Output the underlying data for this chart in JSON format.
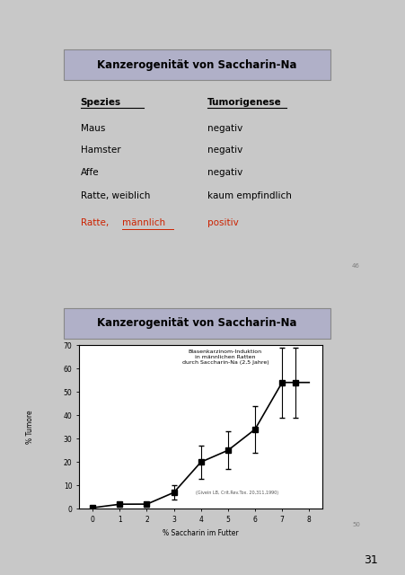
{
  "page_bg": "#c8c8c8",
  "slide_bg": "#f5f5dc",
  "title_bg": "#a0a0b8",
  "page_number": "31",
  "panel1": {
    "title": "Kanzerogenität von Saccharin-Na",
    "species_header": "Spezies",
    "tumor_header": "Tumorigenese",
    "rows": [
      {
        "species": "Maus",
        "tumor": "negativ",
        "red": false
      },
      {
        "species": "Hamster",
        "tumor": "negativ",
        "red": false
      },
      {
        "species": "Affe",
        "tumor": "negativ",
        "red": false
      },
      {
        "species": "Ratte, weiblich",
        "tumor": "kaum empfindlich",
        "red": false
      },
      {
        "species": "Ratte, männlich",
        "tumor": "positiv",
        "red": true
      }
    ],
    "slide_number": "46"
  },
  "panel2": {
    "title": "Kanzerogenität von Saccharin-Na",
    "ylabel": "% Tumore",
    "xlabel": "% Saccharin im Futter",
    "annotation_line1": "Blasenkarzinom-Induktion",
    "annotation_line2": "in männlichen Ratten",
    "annotation_line3": "durch Saccharin-Na (2,5 Jahre)",
    "citation": "(Givein LB, Crit.Rev.Tox. 20,311,1990)",
    "x_data": [
      0,
      1,
      2,
      3,
      4,
      5,
      6,
      7,
      7.5
    ],
    "y_data": [
      0.5,
      2,
      2,
      7,
      20,
      25,
      34,
      54,
      54
    ],
    "y_err_low": [
      0.5,
      1,
      1,
      3,
      7,
      8,
      10,
      15,
      15
    ],
    "y_err_high": [
      0.5,
      1,
      1,
      3,
      7,
      8,
      10,
      15,
      15
    ],
    "xlim": [
      -0.5,
      8.5
    ],
    "ylim": [
      0,
      70
    ],
    "yticks": [
      0,
      10,
      20,
      30,
      40,
      50,
      60,
      70
    ],
    "xticks": [
      0,
      1,
      2,
      3,
      4,
      5,
      6,
      7,
      8
    ],
    "slide_number": "50"
  }
}
